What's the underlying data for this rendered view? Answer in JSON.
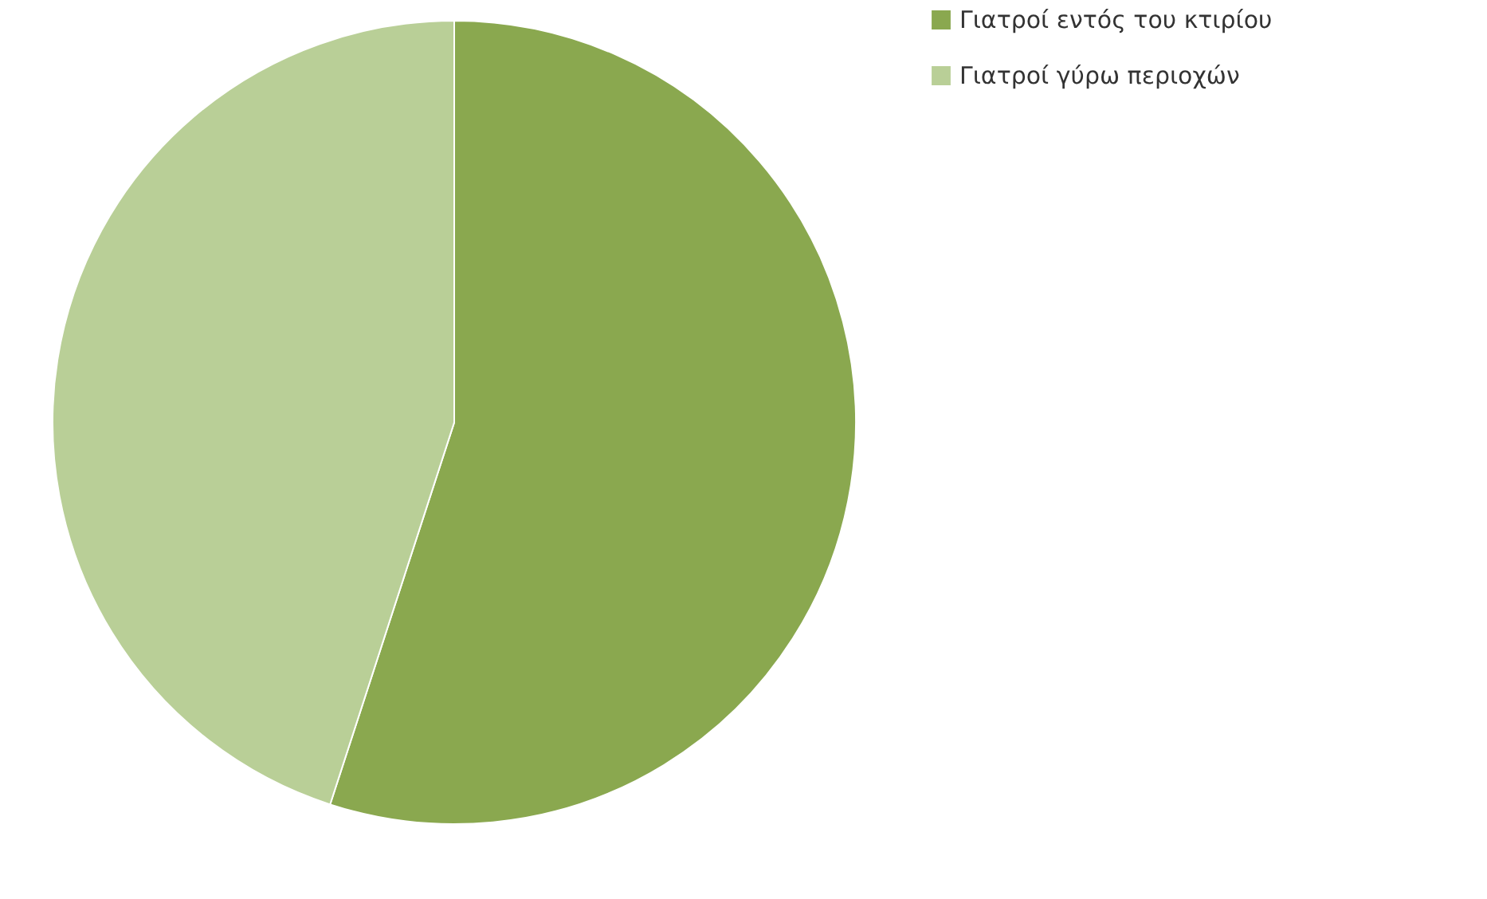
{
  "chart_data": {
    "type": "pie",
    "categories": [
      "Γιατροί εντός του κτιρίου",
      "Γιατροί γύρω περιοχών"
    ],
    "values": [
      55,
      45
    ],
    "colors": [
      "#8aa84f",
      "#b9cf97"
    ],
    "legend": "right"
  }
}
